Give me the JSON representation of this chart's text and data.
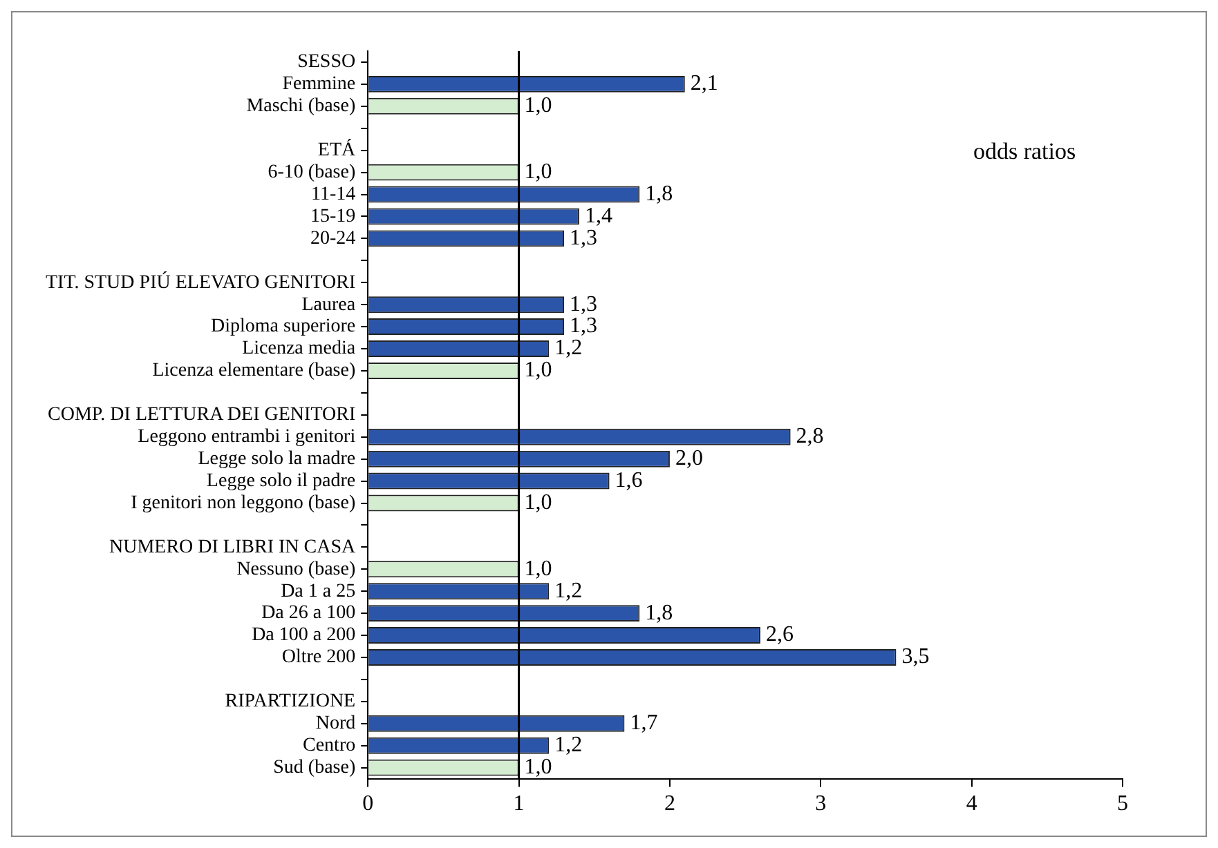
{
  "chart_data": {
    "type": "bar",
    "orientation": "horizontal",
    "categories": [
      "SESSO",
      "Femmine",
      "Maschi (base)",
      null,
      "ETÁ",
      "6-10 (base)",
      "11-14",
      "15-19",
      "20-24",
      null,
      "TIT. STUD PIÚ ELEVATO GENITORI",
      "Laurea",
      "Diploma superiore",
      "Licenza media",
      "Licenza elementare (base)",
      null,
      "COMP. DI LETTURA DEI GENITORI",
      "Leggono entrambi i genitori",
      "Legge solo la madre",
      "Legge solo il padre",
      "I genitori non leggono (base)",
      null,
      "NUMERO DI LIBRI IN CASA",
      "Nessuno (base)",
      "Da 1 a 25",
      "Da 26 a 100",
      "Da 100 a 200",
      "Oltre 200",
      null,
      "RIPARTIZIONE",
      "Nord",
      "Centro",
      "Sud (base)"
    ],
    "values": [
      null,
      2.1,
      1.0,
      null,
      null,
      1.0,
      1.8,
      1.4,
      1.3,
      null,
      null,
      1.3,
      1.3,
      1.2,
      1.0,
      null,
      null,
      2.8,
      2.0,
      1.6,
      1.0,
      null,
      null,
      1.0,
      1.2,
      1.8,
      2.6,
      3.5,
      null,
      null,
      1.7,
      1.2,
      1.0
    ],
    "value_labels": [
      null,
      "2,1",
      "1,0",
      null,
      null,
      "1,0",
      "1,8",
      "1,4",
      "1,3",
      null,
      null,
      "1,3",
      "1,3",
      "1,2",
      "1,0",
      null,
      null,
      "2,8",
      "2,0",
      "1,6",
      "1,0",
      null,
      null,
      "1,0",
      "1,2",
      "1,8",
      "2,6",
      "3,5",
      null,
      null,
      "1,7",
      "1,2",
      "1,0"
    ],
    "colors": [
      null,
      "#2b55a8",
      "#d4ecd0",
      null,
      null,
      "#d4ecd0",
      "#2b55a8",
      "#2b55a8",
      "#2b55a8",
      null,
      null,
      "#2b55a8",
      "#2b55a8",
      "#2b55a8",
      "#d4ecd0",
      null,
      null,
      "#2b55a8",
      "#2b55a8",
      "#2b55a8",
      "#d4ecd0",
      null,
      null,
      "#d4ecd0",
      "#2b55a8",
      "#2b55a8",
      "#2b55a8",
      "#2b55a8",
      null,
      null,
      "#2b55a8",
      "#2b55a8",
      "#d4ecd0"
    ],
    "xlim": [
      0,
      5
    ],
    "xticks": [
      0,
      1,
      2,
      3,
      4,
      5
    ],
    "grid": false,
    "legend": false,
    "ref_lines": [
      {
        "axis": "x",
        "value": 1,
        "color": "#000000"
      }
    ],
    "annotations": [
      "odds ratios"
    ]
  }
}
